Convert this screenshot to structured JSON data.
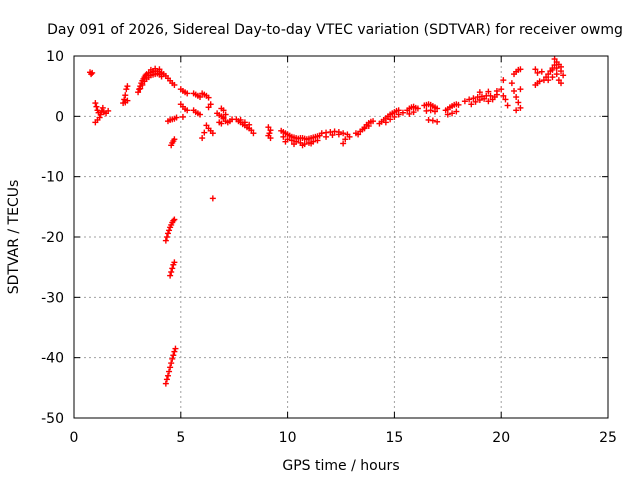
{
  "chart_data": {
    "type": "scatter",
    "title": "Day 091 of 2026, Sidereal Day-to-day VTEC variation (SDTVAR) for receiver owmg",
    "xlabel": "GPS time / hours",
    "ylabel": "SDTVAR / TECUs",
    "xlim": [
      0,
      25
    ],
    "ylim": [
      -50,
      10
    ],
    "xticks": [
      0,
      5,
      10,
      15,
      20,
      25
    ],
    "yticks": [
      10,
      0,
      -10,
      -20,
      -30,
      -40,
      -50
    ],
    "grid": true,
    "marker": "+",
    "marker_color": "#ff0000",
    "series": [
      {
        "name": "SDTVAR",
        "points": [
          [
            0.75,
            7.3
          ],
          [
            0.8,
            7.0
          ],
          [
            0.85,
            7.2
          ],
          [
            1.0,
            2.2
          ],
          [
            1.05,
            1.6
          ],
          [
            1.1,
            1.0
          ],
          [
            1.15,
            0.6
          ],
          [
            1.2,
            -0.2
          ],
          [
            1.25,
            0.3
          ],
          [
            1.3,
            0.9
          ],
          [
            1.35,
            1.4
          ],
          [
            1.4,
            0.7
          ],
          [
            1.5,
            0.5
          ],
          [
            1.6,
            0.9
          ],
          [
            1.0,
            -1.0
          ],
          [
            1.1,
            -0.6
          ],
          [
            2.3,
            2.2
          ],
          [
            2.35,
            2.8
          ],
          [
            2.4,
            3.5
          ],
          [
            2.45,
            4.5
          ],
          [
            2.5,
            5.0
          ],
          [
            2.4,
            2.3
          ],
          [
            2.5,
            2.6
          ],
          [
            3.0,
            4.0
          ],
          [
            3.05,
            4.5
          ],
          [
            3.1,
            5.0
          ],
          [
            3.15,
            5.5
          ],
          [
            3.2,
            5.9
          ],
          [
            3.25,
            6.2
          ],
          [
            3.3,
            6.5
          ],
          [
            3.35,
            6.8
          ],
          [
            3.4,
            7.0
          ],
          [
            3.5,
            7.2
          ],
          [
            3.6,
            7.3
          ],
          [
            3.7,
            7.4
          ],
          [
            3.8,
            7.5
          ],
          [
            3.9,
            7.5
          ],
          [
            4.0,
            7.4
          ],
          [
            4.1,
            7.2
          ],
          [
            4.2,
            7.0
          ],
          [
            4.3,
            6.7
          ],
          [
            4.4,
            6.3
          ],
          [
            4.5,
            5.9
          ],
          [
            4.6,
            5.5
          ],
          [
            4.7,
            5.2
          ],
          [
            3.5,
            6.5
          ],
          [
            3.6,
            6.8
          ],
          [
            3.7,
            6.9
          ],
          [
            3.8,
            7.0
          ],
          [
            3.9,
            7.1
          ],
          [
            4.0,
            6.9
          ],
          [
            4.1,
            6.6
          ],
          [
            3.4,
            6.2
          ],
          [
            3.3,
            5.8
          ],
          [
            3.2,
            5.2
          ],
          [
            3.1,
            4.6
          ],
          [
            3.6,
            7.7
          ],
          [
            3.8,
            7.9
          ],
          [
            4.0,
            7.8
          ],
          [
            4.4,
            -0.8
          ],
          [
            4.5,
            -0.6
          ],
          [
            4.6,
            -0.5
          ],
          [
            4.7,
            -0.4
          ],
          [
            4.8,
            -0.2
          ],
          [
            5.1,
            -0.1
          ],
          [
            4.55,
            -4.8
          ],
          [
            4.6,
            -4.4
          ],
          [
            4.65,
            -4.1
          ],
          [
            4.7,
            -3.8
          ],
          [
            4.3,
            -20.6
          ],
          [
            4.35,
            -20.0
          ],
          [
            4.4,
            -19.4
          ],
          [
            4.45,
            -18.9
          ],
          [
            4.5,
            -18.4
          ],
          [
            4.55,
            -18.0
          ],
          [
            4.6,
            -17.6
          ],
          [
            4.65,
            -17.3
          ],
          [
            4.7,
            -17.1
          ],
          [
            4.5,
            -26.4
          ],
          [
            4.55,
            -25.8
          ],
          [
            4.6,
            -25.2
          ],
          [
            4.65,
            -24.6
          ],
          [
            4.7,
            -24.2
          ],
          [
            4.3,
            -44.3
          ],
          [
            4.35,
            -43.6
          ],
          [
            4.4,
            -43.0
          ],
          [
            4.45,
            -42.3
          ],
          [
            4.5,
            -41.6
          ],
          [
            4.55,
            -40.9
          ],
          [
            4.6,
            -40.2
          ],
          [
            4.65,
            -39.6
          ],
          [
            4.7,
            -39.0
          ],
          [
            4.75,
            -38.5
          ],
          [
            5.0,
            4.5
          ],
          [
            5.1,
            4.2
          ],
          [
            5.2,
            4.0
          ],
          [
            5.3,
            3.8
          ],
          [
            5.0,
            2.0
          ],
          [
            5.1,
            1.6
          ],
          [
            5.2,
            1.2
          ],
          [
            5.3,
            1.0
          ],
          [
            5.6,
            3.8
          ],
          [
            5.7,
            3.6
          ],
          [
            5.8,
            3.4
          ],
          [
            5.9,
            3.2
          ],
          [
            5.6,
            1.0
          ],
          [
            5.7,
            0.7
          ],
          [
            5.8,
            0.5
          ],
          [
            5.9,
            0.3
          ],
          [
            6.0,
            3.8
          ],
          [
            6.1,
            3.6
          ],
          [
            6.2,
            3.4
          ],
          [
            6.3,
            3.1
          ],
          [
            6.4,
            2.0
          ],
          [
            6.3,
            1.5
          ],
          [
            6.2,
            -1.5
          ],
          [
            6.3,
            -2.0
          ],
          [
            6.4,
            -2.4
          ],
          [
            6.5,
            -2.8
          ],
          [
            6.1,
            -2.7
          ],
          [
            6.0,
            -3.6
          ],
          [
            6.5,
            -13.6
          ],
          [
            6.7,
            0.5
          ],
          [
            6.8,
            0.2
          ],
          [
            6.9,
            0.0
          ],
          [
            7.0,
            -0.4
          ],
          [
            7.1,
            -0.8
          ],
          [
            7.2,
            -1.0
          ],
          [
            7.3,
            -0.8
          ],
          [
            7.4,
            -0.5
          ],
          [
            6.8,
            -1.0
          ],
          [
            6.9,
            -1.2
          ],
          [
            7.0,
            -0.2
          ],
          [
            7.1,
            0.3
          ],
          [
            7.0,
            1.0
          ],
          [
            6.9,
            1.3
          ],
          [
            7.6,
            -0.5
          ],
          [
            7.7,
            -0.8
          ],
          [
            7.8,
            -1.0
          ],
          [
            7.9,
            -1.3
          ],
          [
            8.0,
            -1.5
          ],
          [
            8.1,
            -1.8
          ],
          [
            8.2,
            -2.0
          ],
          [
            7.8,
            -0.6
          ],
          [
            8.0,
            -1.0
          ],
          [
            8.2,
            -1.4
          ],
          [
            8.4,
            -2.8
          ],
          [
            8.3,
            -2.3
          ],
          [
            9.1,
            -1.8
          ],
          [
            9.2,
            -2.3
          ],
          [
            9.1,
            -3.2
          ],
          [
            9.2,
            -3.6
          ],
          [
            9.15,
            -2.8
          ],
          [
            9.7,
            -2.4
          ],
          [
            9.8,
            -2.6
          ],
          [
            9.9,
            -2.8
          ],
          [
            10.0,
            -3.0
          ],
          [
            10.1,
            -3.2
          ],
          [
            10.2,
            -3.4
          ],
          [
            10.3,
            -3.5
          ],
          [
            10.4,
            -3.6
          ],
          [
            10.5,
            -3.7
          ],
          [
            10.6,
            -3.6
          ],
          [
            10.7,
            -3.6
          ],
          [
            10.8,
            -3.7
          ],
          [
            10.9,
            -3.8
          ],
          [
            11.0,
            -3.7
          ],
          [
            11.1,
            -3.6
          ],
          [
            11.2,
            -3.5
          ],
          [
            11.3,
            -3.4
          ],
          [
            11.4,
            -3.3
          ],
          [
            11.5,
            -3.2
          ],
          [
            9.8,
            -3.4
          ],
          [
            10.0,
            -3.8
          ],
          [
            10.2,
            -4.0
          ],
          [
            10.4,
            -4.2
          ],
          [
            10.6,
            -4.4
          ],
          [
            10.8,
            -4.6
          ],
          [
            11.0,
            -4.4
          ],
          [
            11.2,
            -4.2
          ],
          [
            11.4,
            -4.0
          ],
          [
            9.9,
            -4.2
          ],
          [
            10.3,
            -4.6
          ],
          [
            10.7,
            -4.8
          ],
          [
            11.1,
            -4.5
          ],
          [
            11.6,
            -2.8
          ],
          [
            11.8,
            -2.7
          ],
          [
            12.0,
            -2.6
          ],
          [
            12.2,
            -2.5
          ],
          [
            12.4,
            -2.6
          ],
          [
            12.6,
            -2.8
          ],
          [
            12.8,
            -3.0
          ],
          [
            12.9,
            -3.4
          ],
          [
            12.6,
            -4.5
          ],
          [
            12.7,
            -3.8
          ],
          [
            12.4,
            -3.0
          ],
          [
            12.1,
            -3.1
          ],
          [
            11.8,
            -3.4
          ],
          [
            13.2,
            -2.8
          ],
          [
            13.4,
            -2.5
          ],
          [
            13.5,
            -2.2
          ],
          [
            13.6,
            -1.8
          ],
          [
            13.7,
            -1.4
          ],
          [
            13.8,
            -1.1
          ],
          [
            13.9,
            -0.9
          ],
          [
            14.0,
            -0.8
          ],
          [
            13.6,
            -2.0
          ],
          [
            13.8,
            -1.6
          ],
          [
            13.3,
            -3.0
          ],
          [
            14.3,
            -1.2
          ],
          [
            14.4,
            -0.9
          ],
          [
            14.5,
            -0.6
          ],
          [
            14.6,
            -0.3
          ],
          [
            14.7,
            0.0
          ],
          [
            14.8,
            0.3
          ],
          [
            14.9,
            0.5
          ],
          [
            15.0,
            0.7
          ],
          [
            15.1,
            0.9
          ],
          [
            15.2,
            1.0
          ],
          [
            14.6,
            -1.0
          ],
          [
            14.8,
            -0.5
          ],
          [
            15.0,
            -0.1
          ],
          [
            15.2,
            0.3
          ],
          [
            15.4,
            0.6
          ],
          [
            15.6,
            1.0
          ],
          [
            15.7,
            1.3
          ],
          [
            15.8,
            1.5
          ],
          [
            15.9,
            1.6
          ],
          [
            16.0,
            1.4
          ],
          [
            16.1,
            1.3
          ],
          [
            15.7,
            0.4
          ],
          [
            15.9,
            0.7
          ],
          [
            16.4,
            1.8
          ],
          [
            16.5,
            1.9
          ],
          [
            16.6,
            2.0
          ],
          [
            16.7,
            1.9
          ],
          [
            16.8,
            1.7
          ],
          [
            16.9,
            1.5
          ],
          [
            17.0,
            1.3
          ],
          [
            16.5,
            0.9
          ],
          [
            16.7,
            1.0
          ],
          [
            16.9,
            0.8
          ],
          [
            16.6,
            -0.6
          ],
          [
            16.8,
            -0.7
          ],
          [
            17.0,
            -0.9
          ],
          [
            17.4,
            1.0
          ],
          [
            17.5,
            1.2
          ],
          [
            17.6,
            1.5
          ],
          [
            17.7,
            1.7
          ],
          [
            17.8,
            1.9
          ],
          [
            17.9,
            2.0
          ],
          [
            18.0,
            1.9
          ],
          [
            17.5,
            0.3
          ],
          [
            17.7,
            0.5
          ],
          [
            17.9,
            0.8
          ],
          [
            18.3,
            2.5
          ],
          [
            18.5,
            2.8
          ],
          [
            18.7,
            3.0
          ],
          [
            18.9,
            3.2
          ],
          [
            19.1,
            3.3
          ],
          [
            19.3,
            3.4
          ],
          [
            19.5,
            3.4
          ],
          [
            19.7,
            3.2
          ],
          [
            19.8,
            3.6
          ],
          [
            18.6,
            2.0
          ],
          [
            18.8,
            2.4
          ],
          [
            19.0,
            2.7
          ],
          [
            19.2,
            2.9
          ],
          [
            19.4,
            2.5
          ],
          [
            19.6,
            2.8
          ],
          [
            19.0,
            4.0
          ],
          [
            19.4,
            4.1
          ],
          [
            19.8,
            4.2
          ],
          [
            20.0,
            4.5
          ],
          [
            20.1,
            6.0
          ],
          [
            20.2,
            2.8
          ],
          [
            20.1,
            3.4
          ],
          [
            20.3,
            1.8
          ],
          [
            20.5,
            5.5
          ],
          [
            20.6,
            7.0
          ],
          [
            20.7,
            7.4
          ],
          [
            20.8,
            7.7
          ],
          [
            20.9,
            7.8
          ],
          [
            20.6,
            4.2
          ],
          [
            20.7,
            3.2
          ],
          [
            20.8,
            2.3
          ],
          [
            20.9,
            1.4
          ],
          [
            20.7,
            1.0
          ],
          [
            20.9,
            4.5
          ],
          [
            21.6,
            5.2
          ],
          [
            21.7,
            5.5
          ],
          [
            21.8,
            5.8
          ],
          [
            21.6,
            7.8
          ],
          [
            21.7,
            7.2
          ],
          [
            21.9,
            7.4
          ],
          [
            22.0,
            6.0
          ],
          [
            22.1,
            6.5
          ],
          [
            22.2,
            7.0
          ],
          [
            22.3,
            7.5
          ],
          [
            22.4,
            8.0
          ],
          [
            22.5,
            8.5
          ],
          [
            22.6,
            9.0
          ],
          [
            22.7,
            8.6
          ],
          [
            22.8,
            8.2
          ],
          [
            22.2,
            6.0
          ],
          [
            22.4,
            6.5
          ],
          [
            22.6,
            7.0
          ],
          [
            22.8,
            7.5
          ],
          [
            22.5,
            9.5
          ],
          [
            22.7,
            6.0
          ],
          [
            22.8,
            5.5
          ],
          [
            22.9,
            6.8
          ],
          [
            22.4,
            7.7
          ],
          [
            22.6,
            8.0
          ]
        ]
      }
    ]
  }
}
